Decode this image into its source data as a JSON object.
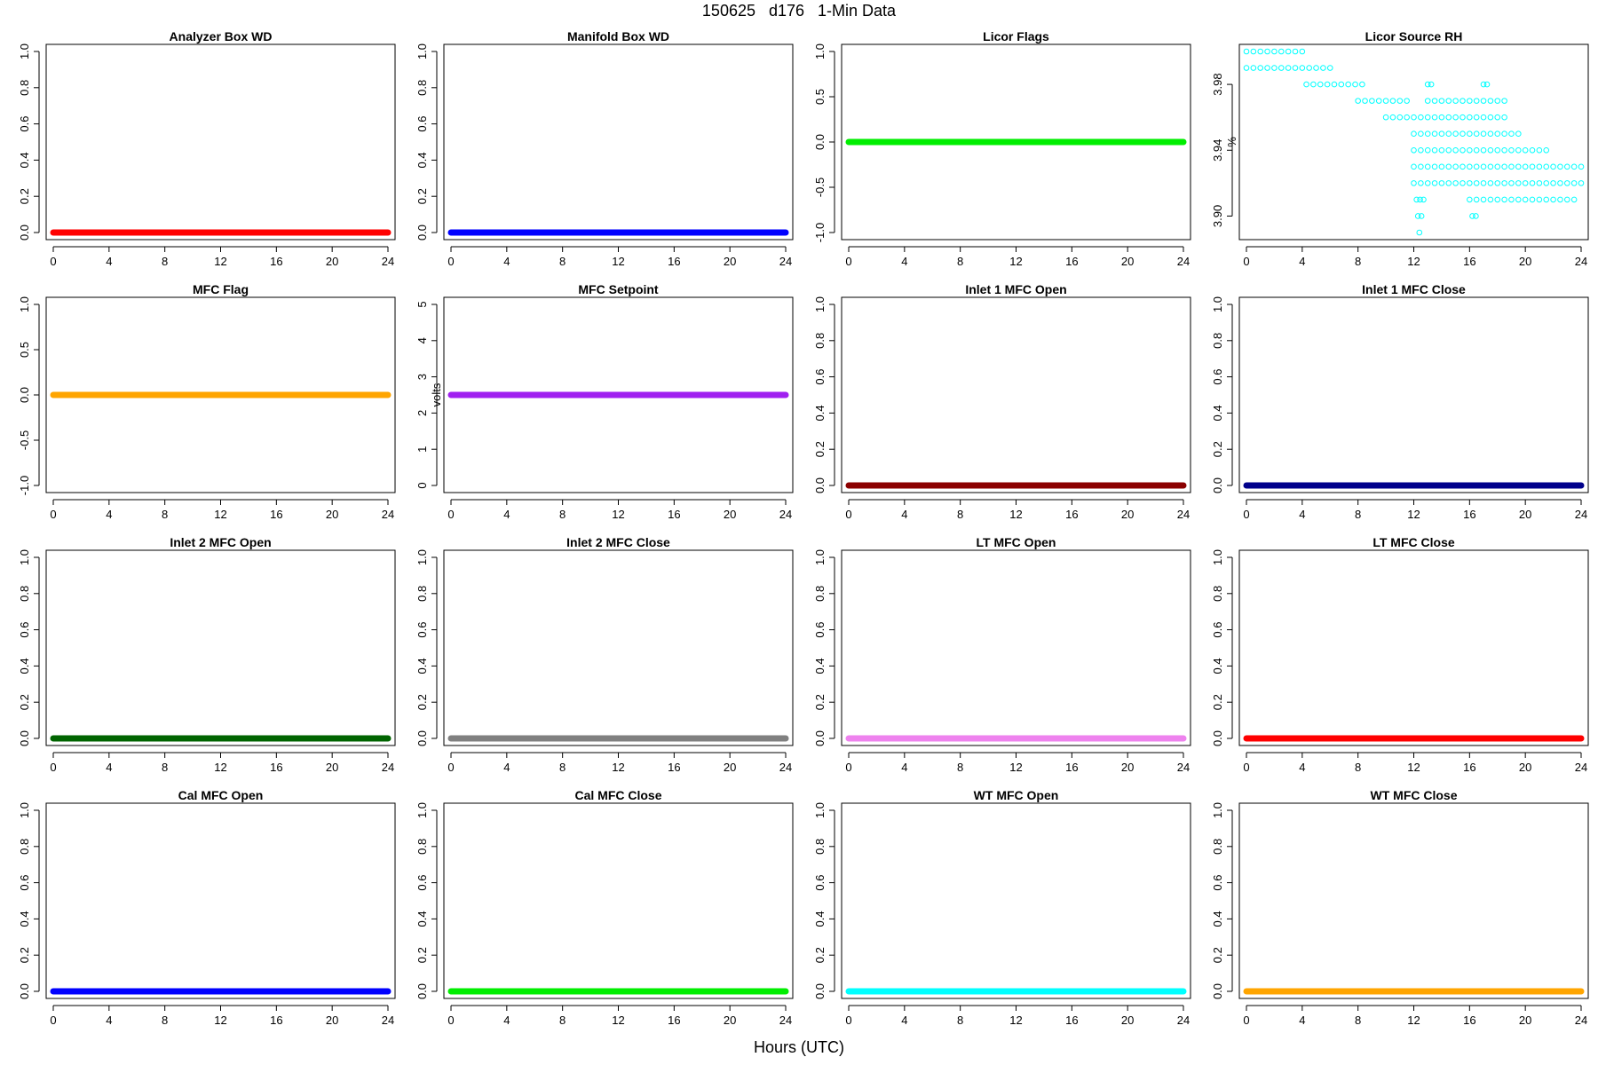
{
  "figure": {
    "title": "150625   d176   1-Min Data",
    "xlabel": "Hours (UTC)"
  },
  "chart_data": [
    {
      "title": "Analyzer Box WD",
      "type": "scatter",
      "color": "#ff0000",
      "ylabel": "",
      "xlim": [
        0,
        24
      ],
      "ylim": [
        0,
        1
      ],
      "xticks": [
        0,
        4,
        8,
        12,
        16,
        20,
        24
      ],
      "yticks": [
        0,
        0.2,
        0.4,
        0.6,
        0.8,
        1
      ],
      "yticklabels": [
        "0.0",
        "0.2",
        "0.4",
        "0.6",
        "0.8",
        "1.0"
      ],
      "series": [
        {
          "x": [
            0,
            24
          ],
          "y": 0
        }
      ]
    },
    {
      "title": "Manifold Box WD",
      "type": "scatter",
      "color": "#0000ff",
      "ylabel": "",
      "xlim": [
        0,
        24
      ],
      "ylim": [
        0,
        1
      ],
      "xticks": [
        0,
        4,
        8,
        12,
        16,
        20,
        24
      ],
      "yticks": [
        0,
        0.2,
        0.4,
        0.6,
        0.8,
        1
      ],
      "yticklabels": [
        "0.0",
        "0.2",
        "0.4",
        "0.6",
        "0.8",
        "1.0"
      ],
      "series": [
        {
          "x": [
            0,
            24
          ],
          "y": 0
        }
      ]
    },
    {
      "title": "Licor Flags",
      "type": "scatter",
      "color": "#00ee00",
      "ylabel": "",
      "xlim": [
        0,
        24
      ],
      "ylim": [
        -1,
        1
      ],
      "xticks": [
        0,
        4,
        8,
        12,
        16,
        20,
        24
      ],
      "yticks": [
        -1,
        -0.5,
        0,
        0.5,
        1
      ],
      "yticklabels": [
        "-1.0",
        "-0.5",
        "0.0",
        "0.5",
        "1.0"
      ],
      "series": [
        {
          "x": [
            0,
            24
          ],
          "y": 0
        }
      ]
    },
    {
      "title": "Licor Source RH",
      "type": "scatter",
      "color": "#00ffff",
      "ylabel": "%",
      "xlim": [
        0,
        24
      ],
      "ylim": [
        3.89,
        4.0
      ],
      "xticks": [
        0,
        4,
        8,
        12,
        16,
        20,
        24
      ],
      "yticks": [
        3.9,
        3.94,
        3.98
      ],
      "yticklabels": [
        "3.90",
        "3.94",
        "3.98"
      ],
      "rows": [
        {
          "y": 4.0,
          "ranges": [
            [
              0.0,
              4.2
            ]
          ]
        },
        {
          "y": 3.99,
          "ranges": [
            [
              0.0,
              6.0
            ]
          ]
        },
        {
          "y": 3.98,
          "ranges": [
            [
              4.3,
              8.5
            ],
            [
              13.0,
              13.3
            ],
            [
              17.0,
              17.3
            ]
          ]
        },
        {
          "y": 3.97,
          "ranges": [
            [
              8.0,
              11.5
            ],
            [
              13.0,
              18.5
            ]
          ]
        },
        {
          "y": 3.96,
          "ranges": [
            [
              10.0,
              12.5
            ],
            [
              13.0,
              18.5
            ]
          ]
        },
        {
          "y": 3.95,
          "ranges": [
            [
              12.0,
              19.5
            ]
          ]
        },
        {
          "y": 3.94,
          "ranges": [
            [
              12.0,
              21.5
            ]
          ]
        },
        {
          "y": 3.93,
          "ranges": [
            [
              12.0,
              24.0
            ]
          ]
        },
        {
          "y": 3.92,
          "ranges": [
            [
              12.0,
              24.0
            ]
          ]
        },
        {
          "y": 3.91,
          "ranges": [
            [
              12.2,
              12.8
            ],
            [
              16.0,
              23.5
            ]
          ]
        },
        {
          "y": 3.9,
          "ranges": [
            [
              12.3,
              12.7
            ],
            [
              16.2,
              16.6
            ]
          ]
        },
        {
          "y": 3.89,
          "ranges": [
            [
              12.4,
              12.6
            ]
          ]
        }
      ]
    },
    {
      "title": "MFC Flag",
      "type": "scatter",
      "color": "#ffa500",
      "ylabel": "",
      "xlim": [
        0,
        24
      ],
      "ylim": [
        -1,
        1
      ],
      "xticks": [
        0,
        4,
        8,
        12,
        16,
        20,
        24
      ],
      "yticks": [
        -1,
        -0.5,
        0,
        0.5,
        1
      ],
      "yticklabels": [
        "-1.0",
        "-0.5",
        "0.0",
        "0.5",
        "1.0"
      ],
      "series": [
        {
          "x": [
            0,
            24
          ],
          "y": 0
        }
      ]
    },
    {
      "title": "MFC Setpoint",
      "type": "scatter",
      "color": "#a020f0",
      "ylabel": "volts",
      "xlim": [
        0,
        24
      ],
      "ylim": [
        0,
        5
      ],
      "xticks": [
        0,
        4,
        8,
        12,
        16,
        20,
        24
      ],
      "yticks": [
        0,
        1,
        2,
        3,
        4,
        5
      ],
      "yticklabels": [
        "0",
        "1",
        "2",
        "3",
        "4",
        "5"
      ],
      "series": [
        {
          "x": [
            0,
            24
          ],
          "y": 2.5
        }
      ]
    },
    {
      "title": "Inlet 1 MFC Open",
      "type": "scatter",
      "color": "#8b0000",
      "ylabel": "",
      "xlim": [
        0,
        24
      ],
      "ylim": [
        0,
        1
      ],
      "xticks": [
        0,
        4,
        8,
        12,
        16,
        20,
        24
      ],
      "yticks": [
        0,
        0.2,
        0.4,
        0.6,
        0.8,
        1
      ],
      "yticklabels": [
        "0.0",
        "0.2",
        "0.4",
        "0.6",
        "0.8",
        "1.0"
      ],
      "series": [
        {
          "x": [
            0,
            24
          ],
          "y": 0
        }
      ]
    },
    {
      "title": "Inlet 1 MFC Close",
      "type": "scatter",
      "color": "#00008b",
      "ylabel": "",
      "xlim": [
        0,
        24
      ],
      "ylim": [
        0,
        1
      ],
      "xticks": [
        0,
        4,
        8,
        12,
        16,
        20,
        24
      ],
      "yticks": [
        0,
        0.2,
        0.4,
        0.6,
        0.8,
        1
      ],
      "yticklabels": [
        "0.0",
        "0.2",
        "0.4",
        "0.6",
        "0.8",
        "1.0"
      ],
      "series": [
        {
          "x": [
            0,
            24
          ],
          "y": 0
        }
      ]
    },
    {
      "title": "Inlet 2 MFC Open",
      "type": "scatter",
      "color": "#006400",
      "ylabel": "",
      "xlim": [
        0,
        24
      ],
      "ylim": [
        0,
        1
      ],
      "xticks": [
        0,
        4,
        8,
        12,
        16,
        20,
        24
      ],
      "yticks": [
        0,
        0.2,
        0.4,
        0.6,
        0.8,
        1
      ],
      "yticklabels": [
        "0.0",
        "0.2",
        "0.4",
        "0.6",
        "0.8",
        "1.0"
      ],
      "series": [
        {
          "x": [
            0,
            24
          ],
          "y": 0
        }
      ]
    },
    {
      "title": "Inlet 2 MFC Close",
      "type": "scatter",
      "color": "#808080",
      "ylabel": "",
      "xlim": [
        0,
        24
      ],
      "ylim": [
        0,
        1
      ],
      "xticks": [
        0,
        4,
        8,
        12,
        16,
        20,
        24
      ],
      "yticks": [
        0,
        0.2,
        0.4,
        0.6,
        0.8,
        1
      ],
      "yticklabels": [
        "0.0",
        "0.2",
        "0.4",
        "0.6",
        "0.8",
        "1.0"
      ],
      "series": [
        {
          "x": [
            0,
            24
          ],
          "y": 0
        }
      ]
    },
    {
      "title": "LT MFC Open",
      "type": "scatter",
      "color": "#ee82ee",
      "ylabel": "",
      "xlim": [
        0,
        24
      ],
      "ylim": [
        0,
        1
      ],
      "xticks": [
        0,
        4,
        8,
        12,
        16,
        20,
        24
      ],
      "yticks": [
        0,
        0.2,
        0.4,
        0.6,
        0.8,
        1
      ],
      "yticklabels": [
        "0.0",
        "0.2",
        "0.4",
        "0.6",
        "0.8",
        "1.0"
      ],
      "series": [
        {
          "x": [
            0,
            24
          ],
          "y": 0
        }
      ]
    },
    {
      "title": "LT MFC Close",
      "type": "scatter",
      "color": "#ff0000",
      "ylabel": "",
      "xlim": [
        0,
        24
      ],
      "ylim": [
        0,
        1
      ],
      "xticks": [
        0,
        4,
        8,
        12,
        16,
        20,
        24
      ],
      "yticks": [
        0,
        0.2,
        0.4,
        0.6,
        0.8,
        1
      ],
      "yticklabels": [
        "0.0",
        "0.2",
        "0.4",
        "0.6",
        "0.8",
        "1.0"
      ],
      "series": [
        {
          "x": [
            0,
            24
          ],
          "y": 0
        }
      ]
    },
    {
      "title": "Cal MFC Open",
      "type": "scatter",
      "color": "#0000ff",
      "ylabel": "",
      "xlim": [
        0,
        24
      ],
      "ylim": [
        0,
        1
      ],
      "xticks": [
        0,
        4,
        8,
        12,
        16,
        20,
        24
      ],
      "yticks": [
        0,
        0.2,
        0.4,
        0.6,
        0.8,
        1
      ],
      "yticklabels": [
        "0.0",
        "0.2",
        "0.4",
        "0.6",
        "0.8",
        "1.0"
      ],
      "series": [
        {
          "x": [
            0,
            24
          ],
          "y": 0
        }
      ]
    },
    {
      "title": "Cal MFC Close",
      "type": "scatter",
      "color": "#00ee00",
      "ylabel": "",
      "xlim": [
        0,
        24
      ],
      "ylim": [
        0,
        1
      ],
      "xticks": [
        0,
        4,
        8,
        12,
        16,
        20,
        24
      ],
      "yticks": [
        0,
        0.2,
        0.4,
        0.6,
        0.8,
        1
      ],
      "yticklabels": [
        "0.0",
        "0.2",
        "0.4",
        "0.6",
        "0.8",
        "1.0"
      ],
      "series": [
        {
          "x": [
            0,
            24
          ],
          "y": 0
        }
      ]
    },
    {
      "title": "WT MFC Open",
      "type": "scatter",
      "color": "#00ffff",
      "ylabel": "",
      "xlim": [
        0,
        24
      ],
      "ylim": [
        0,
        1
      ],
      "xticks": [
        0,
        4,
        8,
        12,
        16,
        20,
        24
      ],
      "yticks": [
        0,
        0.2,
        0.4,
        0.6,
        0.8,
        1
      ],
      "yticklabels": [
        "0.0",
        "0.2",
        "0.4",
        "0.6",
        "0.8",
        "1.0"
      ],
      "series": [
        {
          "x": [
            0,
            24
          ],
          "y": 0
        }
      ]
    },
    {
      "title": "WT MFC Close",
      "type": "scatter",
      "color": "#ffa500",
      "ylabel": "",
      "xlim": [
        0,
        24
      ],
      "ylim": [
        0,
        1
      ],
      "xticks": [
        0,
        4,
        8,
        12,
        16,
        20,
        24
      ],
      "yticks": [
        0,
        0.2,
        0.4,
        0.6,
        0.8,
        1
      ],
      "yticklabels": [
        "0.0",
        "0.2",
        "0.4",
        "0.6",
        "0.8",
        "1.0"
      ],
      "series": [
        {
          "x": [
            0,
            24
          ],
          "y": 0
        }
      ]
    }
  ]
}
